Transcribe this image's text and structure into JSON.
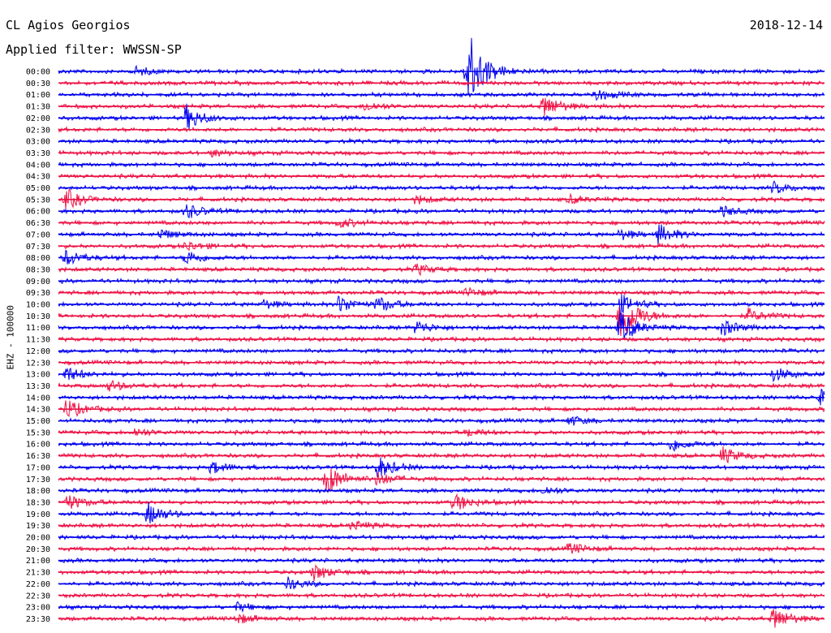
{
  "header": {
    "station": "CL Agios Georgios",
    "date": "2018-12-14",
    "filter": "Applied filter: WWSSN-SP"
  },
  "channel_label": "EHZ - 100000",
  "colors": {
    "even_row": "#0000ee",
    "odd_row": "#ee1144"
  },
  "chart_data": {
    "type": "line",
    "title": "CL Agios Georgios",
    "ylabel": "EHZ - 100000",
    "row_labels": [
      "00:00",
      "00:30",
      "01:00",
      "01:30",
      "02:00",
      "02:30",
      "03:00",
      "03:30",
      "04:00",
      "04:30",
      "05:00",
      "05:30",
      "06:00",
      "06:30",
      "07:00",
      "07:30",
      "08:00",
      "08:30",
      "09:00",
      "09:30",
      "10:00",
      "10:30",
      "11:00",
      "11:30",
      "12:00",
      "12:30",
      "13:00",
      "13:30",
      "14:00",
      "14:30",
      "15:00",
      "15:30",
      "16:00",
      "16:30",
      "17:00",
      "17:30",
      "18:00",
      "18:30",
      "19:00",
      "19:30",
      "20:00",
      "20:30",
      "21:00",
      "21:30",
      "22:00",
      "22:30",
      "23:00",
      "23:30"
    ],
    "minutes_per_row": 30,
    "events": [
      {
        "row": "00:00",
        "minute": 16,
        "amplitude": 55
      },
      {
        "row": "00:00",
        "minute": 3,
        "amplitude": 5
      },
      {
        "row": "01:00",
        "minute": 21,
        "amplitude": 8
      },
      {
        "row": "01:30",
        "minute": 12,
        "amplitude": 6
      },
      {
        "row": "01:30",
        "minute": 19,
        "amplitude": 14
      },
      {
        "row": "02:00",
        "minute": 5,
        "amplitude": 16
      },
      {
        "row": "03:30",
        "minute": 6,
        "amplitude": 4
      },
      {
        "row": "05:00",
        "minute": 28,
        "amplitude": 7
      },
      {
        "row": "05:30",
        "minute": 0.3,
        "amplitude": 12
      },
      {
        "row": "05:30",
        "minute": 14,
        "amplitude": 5
      },
      {
        "row": "05:30",
        "minute": 20,
        "amplitude": 5
      },
      {
        "row": "06:00",
        "minute": 5,
        "amplitude": 9
      },
      {
        "row": "06:00",
        "minute": 26,
        "amplitude": 6
      },
      {
        "row": "06:30",
        "minute": 11,
        "amplitude": 6
      },
      {
        "row": "07:00",
        "minute": 4,
        "amplitude": 6
      },
      {
        "row": "07:00",
        "minute": 22,
        "amplitude": 6
      },
      {
        "row": "07:00",
        "minute": 23.5,
        "amplitude": 12
      },
      {
        "row": "07:30",
        "minute": 5,
        "amplitude": 6
      },
      {
        "row": "08:00",
        "minute": 0.3,
        "amplitude": 10
      },
      {
        "row": "08:00",
        "minute": 5,
        "amplitude": 9
      },
      {
        "row": "08:30",
        "minute": 14,
        "amplitude": 6
      },
      {
        "row": "09:30",
        "minute": 16,
        "amplitude": 5
      },
      {
        "row": "10:00",
        "minute": 11,
        "amplitude": 11
      },
      {
        "row": "10:00",
        "minute": 12.5,
        "amplitude": 9
      },
      {
        "row": "10:00",
        "minute": 8,
        "amplitude": 5
      },
      {
        "row": "10:00",
        "minute": 22,
        "amplitude": 12
      },
      {
        "row": "10:30",
        "minute": 22,
        "amplitude": 38
      },
      {
        "row": "10:30",
        "minute": 27,
        "amplitude": 8
      },
      {
        "row": "11:00",
        "minute": 14,
        "amplitude": 8
      },
      {
        "row": "11:00",
        "minute": 26,
        "amplitude": 10
      },
      {
        "row": "11:00",
        "minute": 22,
        "amplitude": 20
      },
      {
        "row": "13:00",
        "minute": 0.3,
        "amplitude": 9
      },
      {
        "row": "13:00",
        "minute": 28,
        "amplitude": 8
      },
      {
        "row": "13:30",
        "minute": 2,
        "amplitude": 6
      },
      {
        "row": "14:00",
        "minute": 29.8,
        "amplitude": 9
      },
      {
        "row": "14:30",
        "minute": 0.3,
        "amplitude": 12
      },
      {
        "row": "15:00",
        "minute": 20,
        "amplitude": 6
      },
      {
        "row": "15:30",
        "minute": 3,
        "amplitude": 5
      },
      {
        "row": "15:30",
        "minute": 16,
        "amplitude": 5
      },
      {
        "row": "16:00",
        "minute": 24,
        "amplitude": 9
      },
      {
        "row": "16:30",
        "minute": 26,
        "amplitude": 10
      },
      {
        "row": "17:00",
        "minute": 6,
        "amplitude": 8
      },
      {
        "row": "17:00",
        "minute": 12.5,
        "amplitude": 14
      },
      {
        "row": "17:30",
        "minute": 10.5,
        "amplitude": 20
      },
      {
        "row": "17:30",
        "minute": 12.5,
        "amplitude": 8
      },
      {
        "row": "18:00",
        "minute": 19,
        "amplitude": 5
      },
      {
        "row": "18:30",
        "minute": 0.3,
        "amplitude": 10
      },
      {
        "row": "18:30",
        "minute": 15.5,
        "amplitude": 11
      },
      {
        "row": "19:00",
        "minute": 3.5,
        "amplitude": 14
      },
      {
        "row": "19:30",
        "minute": 11.5,
        "amplitude": 6
      },
      {
        "row": "20:30",
        "minute": 20,
        "amplitude": 7
      },
      {
        "row": "21:30",
        "minute": 10,
        "amplitude": 10
      },
      {
        "row": "22:00",
        "minute": 9,
        "amplitude": 7
      },
      {
        "row": "23:00",
        "minute": 7,
        "amplitude": 5
      },
      {
        "row": "23:30",
        "minute": 7,
        "amplitude": 6
      },
      {
        "row": "23:30",
        "minute": 28,
        "amplitude": 14
      }
    ],
    "background_noise_amplitude": 2.2
  }
}
